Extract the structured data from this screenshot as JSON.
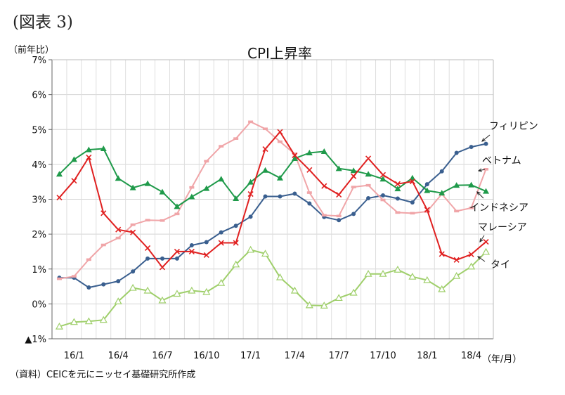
{
  "header": {
    "figure_label": "(図表 3)",
    "y_unit": "（前年比）",
    "x_unit": "（年/月）",
    "source": "（資料）CEICを元にニッセイ基礎研究所作成"
  },
  "colors": {
    "philippines": "#3a5f8f",
    "vietnam": "#f0a5a8",
    "indonesia": "#1f9a4a",
    "malaysia": "#e02020",
    "thailand": "#9fcf6b"
  },
  "chart_data": {
    "type": "line",
    "title": "CPI上昇率",
    "ylabel": "（前年比）",
    "xlabel": "（年/月）",
    "ylim": [
      -1,
      7
    ],
    "yticks": [
      -1,
      0,
      1,
      2,
      3,
      4,
      5,
      6,
      7
    ],
    "ytick_labels": [
      "▲1%",
      "0%",
      "1%",
      "2%",
      "3%",
      "4%",
      "5%",
      "6%",
      "7%"
    ],
    "x": [
      "15/12",
      "16/1",
      "16/2",
      "16/3",
      "16/4",
      "16/5",
      "16/6",
      "16/7",
      "16/8",
      "16/9",
      "16/10",
      "16/11",
      "16/12",
      "17/1",
      "17/2",
      "17/3",
      "17/4",
      "17/5",
      "17/6",
      "17/7",
      "17/8",
      "17/9",
      "17/10",
      "17/11",
      "17/12",
      "18/1",
      "18/2",
      "18/3",
      "18/4",
      "18/5"
    ],
    "xtick_labels": [
      "16/1",
      "16/4",
      "16/7",
      "16/10",
      "17/1",
      "17/4",
      "17/7",
      "17/10",
      "18/1",
      "18/4"
    ],
    "grid": true,
    "legend": "none (series labeled directly at right end)",
    "series": [
      {
        "name": "フィリピン",
        "marker": "circle",
        "color_key": "philippines",
        "values": [
          0.75,
          0.75,
          0.47,
          0.56,
          0.65,
          0.93,
          1.3,
          1.3,
          1.3,
          1.68,
          1.77,
          2.05,
          2.24,
          2.5,
          3.08,
          3.08,
          3.16,
          2.88,
          2.49,
          2.4,
          2.58,
          3.03,
          3.11,
          3.02,
          2.91,
          3.43,
          3.8,
          4.33,
          4.5,
          4.59
        ]
      },
      {
        "name": "ベトナム",
        "marker": "dash",
        "color_key": "vietnam",
        "values": [
          0.72,
          0.79,
          1.27,
          1.69,
          1.89,
          2.27,
          2.4,
          2.39,
          2.58,
          3.34,
          4.09,
          4.52,
          4.74,
          5.22,
          5.02,
          4.65,
          4.3,
          3.19,
          2.54,
          2.52,
          3.35,
          3.4,
          2.98,
          2.62,
          2.6,
          2.65,
          3.15,
          2.66,
          2.75,
          3.86
        ]
      },
      {
        "name": "インドネシア",
        "marker": "triangle",
        "color_key": "indonesia",
        "values": [
          3.72,
          4.14,
          4.42,
          4.45,
          3.6,
          3.33,
          3.45,
          3.21,
          2.79,
          3.07,
          3.31,
          3.58,
          3.02,
          3.49,
          3.83,
          3.61,
          4.17,
          4.33,
          4.37,
          3.88,
          3.82,
          3.72,
          3.58,
          3.3,
          3.61,
          3.25,
          3.18,
          3.4,
          3.41,
          3.23
        ]
      },
      {
        "name": "マレーシア",
        "marker": "x",
        "color_key": "malaysia",
        "values": [
          3.05,
          3.53,
          4.2,
          2.6,
          2.13,
          2.05,
          1.6,
          1.05,
          1.5,
          1.5,
          1.4,
          1.75,
          1.75,
          3.15,
          4.44,
          4.93,
          4.26,
          3.84,
          3.38,
          3.13,
          3.66,
          4.17,
          3.7,
          3.44,
          3.51,
          2.7,
          1.43,
          1.26,
          1.42,
          1.78
        ]
      },
      {
        "name": "タイ",
        "marker": "open-triangle",
        "color_key": "thailand",
        "values": [
          -0.65,
          -0.52,
          -0.5,
          -0.46,
          0.07,
          0.46,
          0.38,
          0.1,
          0.29,
          0.38,
          0.34,
          0.6,
          1.13,
          1.55,
          1.44,
          0.76,
          0.38,
          -0.04,
          -0.05,
          0.17,
          0.32,
          0.86,
          0.86,
          0.98,
          0.78,
          0.68,
          0.42,
          0.8,
          1.07,
          1.49
        ]
      }
    ]
  }
}
